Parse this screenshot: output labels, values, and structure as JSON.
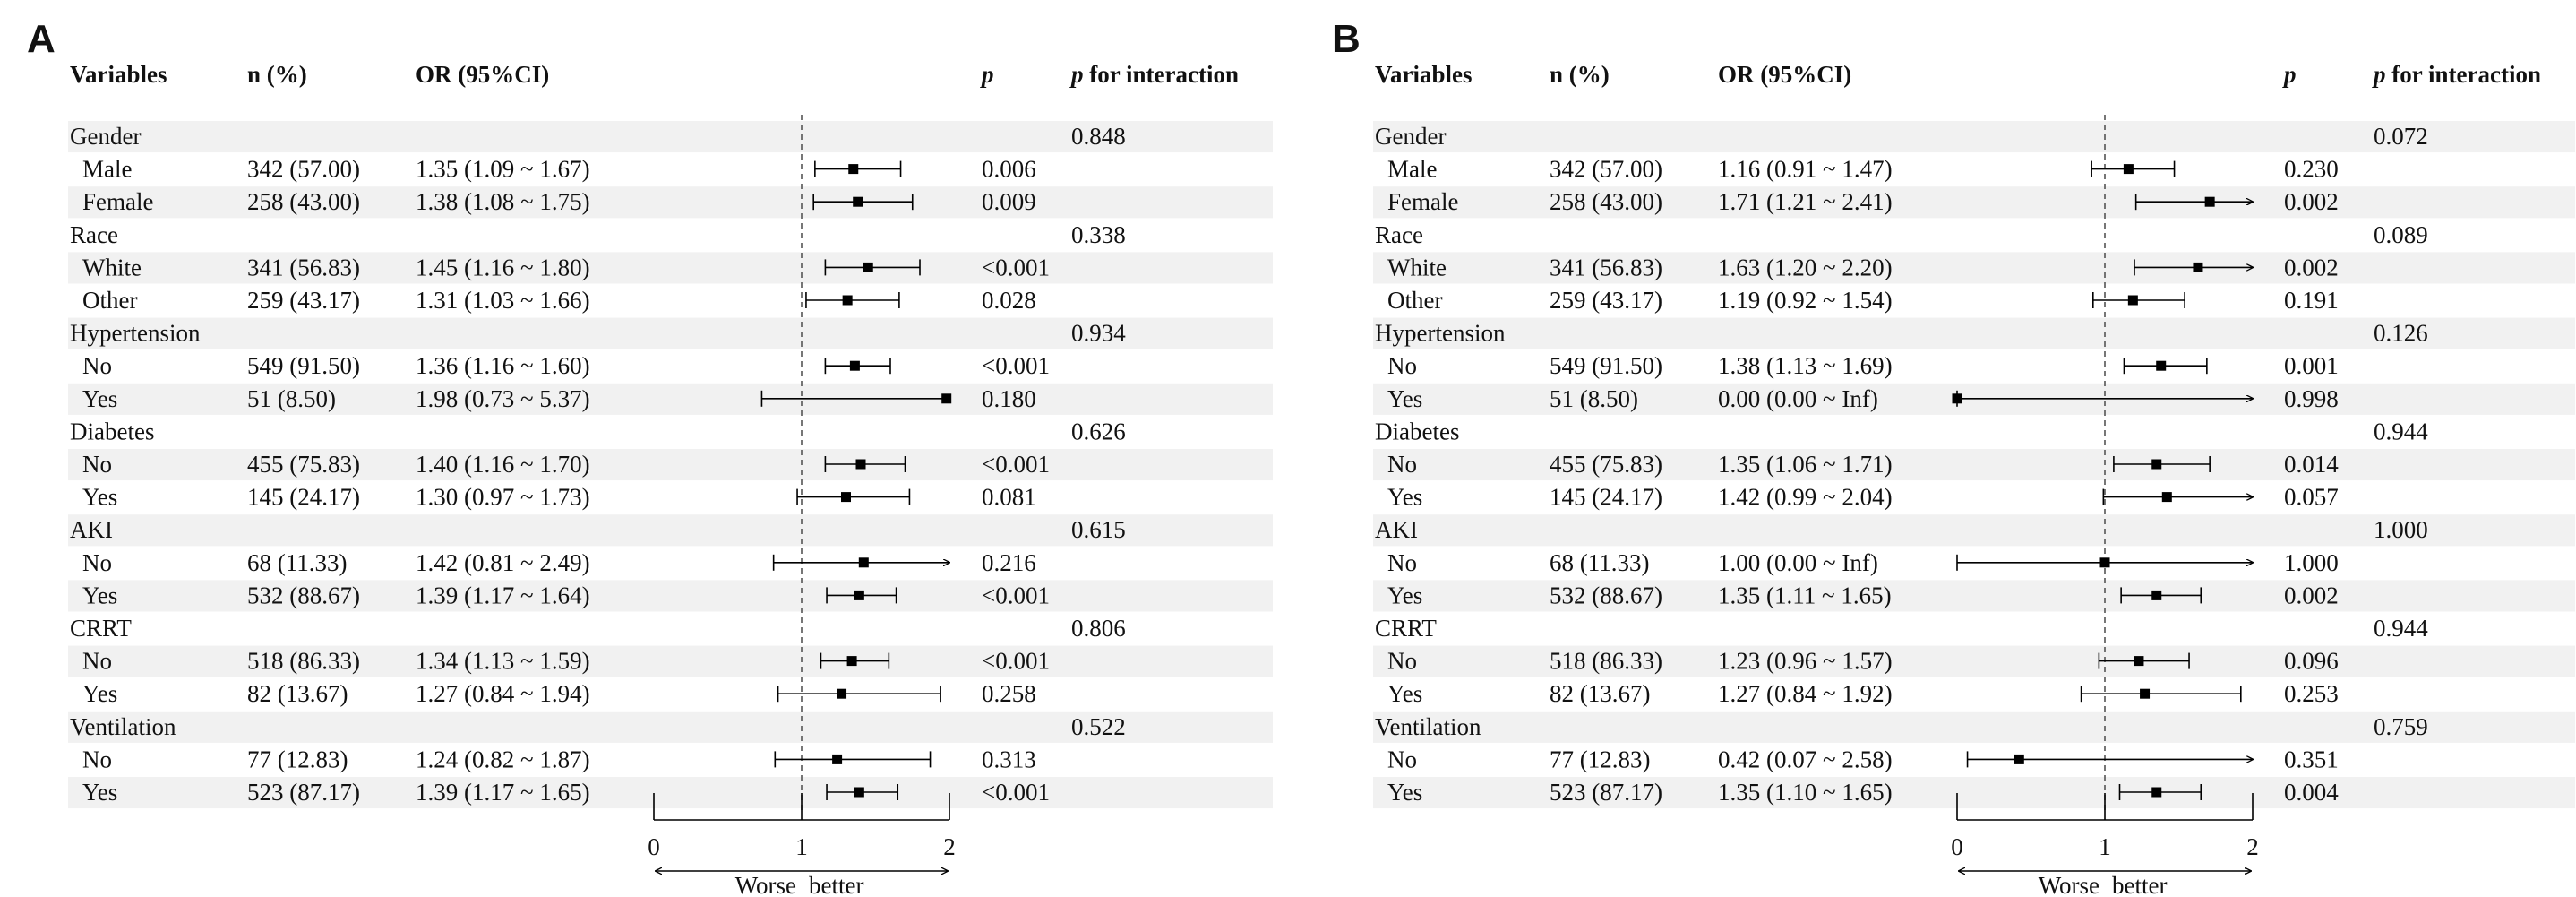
{
  "chart_data": [
    {
      "type": "table",
      "panel_label": "A",
      "columns": [
        "Variables",
        "n (%)",
        "OR (95%CI)",
        "p",
        "p for interaction"
      ],
      "xlim": [
        0,
        2
      ],
      "xticks": [
        "0",
        "1",
        "2"
      ],
      "reference_line": 1,
      "axis_left_label": "Worse",
      "axis_right_label": "better",
      "groups": [
        {
          "name": "Gender",
          "p_interaction": "0.848",
          "rows": [
            {
              "label": "Male",
              "n": "342 (57.00)",
              "or_text": "1.35 (1.09 ~ 1.67)",
              "p": "0.006",
              "or": 1.35,
              "lo": 1.09,
              "hi": 1.67
            },
            {
              "label": "Female",
              "n": "258 (43.00)",
              "or_text": "1.38 (1.08 ~ 1.75)",
              "p": "0.009",
              "or": 1.38,
              "lo": 1.08,
              "hi": 1.75
            }
          ]
        },
        {
          "name": "Race",
          "p_interaction": "0.338",
          "rows": [
            {
              "label": "White",
              "n": "341 (56.83)",
              "or_text": "1.45 (1.16 ~ 1.80)",
              "p": "<0.001",
              "or": 1.45,
              "lo": 1.16,
              "hi": 1.8
            },
            {
              "label": "Other",
              "n": "259 (43.17)",
              "or_text": "1.31 (1.03 ~ 1.66)",
              "p": "0.028",
              "or": 1.31,
              "lo": 1.03,
              "hi": 1.66
            }
          ]
        },
        {
          "name": "Hypertension",
          "p_interaction": "0.934",
          "rows": [
            {
              "label": "No",
              "n": "549 (91.50)",
              "or_text": "1.36 (1.16 ~ 1.60)",
              "p": "<0.001",
              "or": 1.36,
              "lo": 1.16,
              "hi": 1.6
            },
            {
              "label": "Yes",
              "n": "51 (8.50)",
              "or_text": "1.98 (0.73 ~ 5.37)",
              "p": "0.180",
              "or": 1.98,
              "lo": 0.73,
              "hi": 5.37
            }
          ]
        },
        {
          "name": "Diabetes",
          "p_interaction": "0.626",
          "rows": [
            {
              "label": "No",
              "n": "455 (75.83)",
              "or_text": "1.40 (1.16 ~ 1.70)",
              "p": "<0.001",
              "or": 1.4,
              "lo": 1.16,
              "hi": 1.7
            },
            {
              "label": "Yes",
              "n": "145 (24.17)",
              "or_text": "1.30 (0.97 ~ 1.73)",
              "p": "0.081",
              "or": 1.3,
              "lo": 0.97,
              "hi": 1.73
            }
          ]
        },
        {
          "name": "AKI",
          "p_interaction": "0.615",
          "rows": [
            {
              "label": "No",
              "n": "68 (11.33)",
              "or_text": "1.42 (0.81 ~ 2.49)",
              "p": "0.216",
              "or": 1.42,
              "lo": 0.81,
              "hi": 2.49
            },
            {
              "label": "Yes",
              "n": "532 (88.67)",
              "or_text": "1.39 (1.17 ~ 1.64)",
              "p": "<0.001",
              "or": 1.39,
              "lo": 1.17,
              "hi": 1.64
            }
          ]
        },
        {
          "name": "CRRT",
          "p_interaction": "0.806",
          "rows": [
            {
              "label": "No",
              "n": "518 (86.33)",
              "or_text": "1.34 (1.13 ~ 1.59)",
              "p": "<0.001",
              "or": 1.34,
              "lo": 1.13,
              "hi": 1.59
            },
            {
              "label": "Yes",
              "n": "82 (13.67)",
              "or_text": "1.27 (0.84 ~ 1.94)",
              "p": "0.258",
              "or": 1.27,
              "lo": 0.84,
              "hi": 1.94
            }
          ]
        },
        {
          "name": "Ventilation",
          "p_interaction": "0.522",
          "rows": [
            {
              "label": "No",
              "n": "77 (12.83)",
              "or_text": "1.24 (0.82 ~ 1.87)",
              "p": "0.313",
              "or": 1.24,
              "lo": 0.82,
              "hi": 1.87
            },
            {
              "label": "Yes",
              "n": "523 (87.17)",
              "or_text": "1.39 (1.17 ~ 1.65)",
              "p": "<0.001",
              "or": 1.39,
              "lo": 1.17,
              "hi": 1.65
            }
          ]
        }
      ]
    },
    {
      "type": "table",
      "panel_label": "B",
      "columns": [
        "Variables",
        "n (%)",
        "OR (95%CI)",
        "p",
        "p for interaction"
      ],
      "xlim": [
        0,
        2
      ],
      "xticks": [
        "0",
        "1",
        "2"
      ],
      "reference_line": 1,
      "axis_left_label": "Worse",
      "axis_right_label": "better",
      "groups": [
        {
          "name": "Gender",
          "p_interaction": "0.072",
          "rows": [
            {
              "label": "Male",
              "n": "342 (57.00)",
              "or_text": "1.16 (0.91 ~ 1.47)",
              "p": "0.230",
              "or": 1.16,
              "lo": 0.91,
              "hi": 1.47
            },
            {
              "label": "Female",
              "n": "258 (43.00)",
              "or_text": "1.71 (1.21 ~ 2.41)",
              "p": "0.002",
              "or": 1.71,
              "lo": 1.21,
              "hi": 2.41
            }
          ]
        },
        {
          "name": "Race",
          "p_interaction": "0.089",
          "rows": [
            {
              "label": "White",
              "n": "341 (56.83)",
              "or_text": "1.63 (1.20 ~ 2.20)",
              "p": "0.002",
              "or": 1.63,
              "lo": 1.2,
              "hi": 2.2
            },
            {
              "label": "Other",
              "n": "259 (43.17)",
              "or_text": "1.19 (0.92 ~ 1.54)",
              "p": "0.191",
              "or": 1.19,
              "lo": 0.92,
              "hi": 1.54
            }
          ]
        },
        {
          "name": "Hypertension",
          "p_interaction": "0.126",
          "rows": [
            {
              "label": "No",
              "n": "549 (91.50)",
              "or_text": "1.38 (1.13 ~ 1.69)",
              "p": "0.001",
              "or": 1.38,
              "lo": 1.13,
              "hi": 1.69
            },
            {
              "label": "Yes",
              "n": "51 (8.50)",
              "or_text": "0.00 (0.00 ~ Inf)",
              "p": "0.998",
              "or": 0.0,
              "lo": 0.0,
              "hi": "Inf"
            }
          ]
        },
        {
          "name": "Diabetes",
          "p_interaction": "0.944",
          "rows": [
            {
              "label": "No",
              "n": "455 (75.83)",
              "or_text": "1.35 (1.06 ~ 1.71)",
              "p": "0.014",
              "or": 1.35,
              "lo": 1.06,
              "hi": 1.71
            },
            {
              "label": "Yes",
              "n": "145 (24.17)",
              "or_text": "1.42 (0.99 ~ 2.04)",
              "p": "0.057",
              "or": 1.42,
              "lo": 0.99,
              "hi": 2.04
            }
          ]
        },
        {
          "name": "AKI",
          "p_interaction": "1.000",
          "rows": [
            {
              "label": "No",
              "n": "68 (11.33)",
              "or_text": "1.00 (0.00 ~ Inf)",
              "p": "1.000",
              "or": 1.0,
              "lo": 0.0,
              "hi": "Inf"
            },
            {
              "label": "Yes",
              "n": "532 (88.67)",
              "or_text": "1.35 (1.11 ~ 1.65)",
              "p": "0.002",
              "or": 1.35,
              "lo": 1.11,
              "hi": 1.65
            }
          ]
        },
        {
          "name": "CRRT",
          "p_interaction": "0.944",
          "rows": [
            {
              "label": "No",
              "n": "518 (86.33)",
              "or_text": "1.23 (0.96 ~ 1.57)",
              "p": "0.096",
              "or": 1.23,
              "lo": 0.96,
              "hi": 1.57
            },
            {
              "label": "Yes",
              "n": "82 (13.67)",
              "or_text": "1.27 (0.84 ~ 1.92)",
              "p": "0.253",
              "or": 1.27,
              "lo": 0.84,
              "hi": 1.92
            }
          ]
        },
        {
          "name": "Ventilation",
          "p_interaction": "0.759",
          "rows": [
            {
              "label": "No",
              "n": "77 (12.83)",
              "or_text": "0.42 (0.07 ~ 2.58)",
              "p": "0.351",
              "or": 0.42,
              "lo": 0.07,
              "hi": 2.58
            },
            {
              "label": "Yes",
              "n": "523 (87.17)",
              "or_text": "1.35 (1.10 ~ 1.65)",
              "p": "0.004",
              "or": 1.35,
              "lo": 1.1,
              "hi": 1.65
            }
          ]
        }
      ]
    }
  ],
  "colors": {
    "stripe": "#f1f1f1",
    "text": "#111111",
    "ref_line": "#555555",
    "mark": "#000000"
  }
}
